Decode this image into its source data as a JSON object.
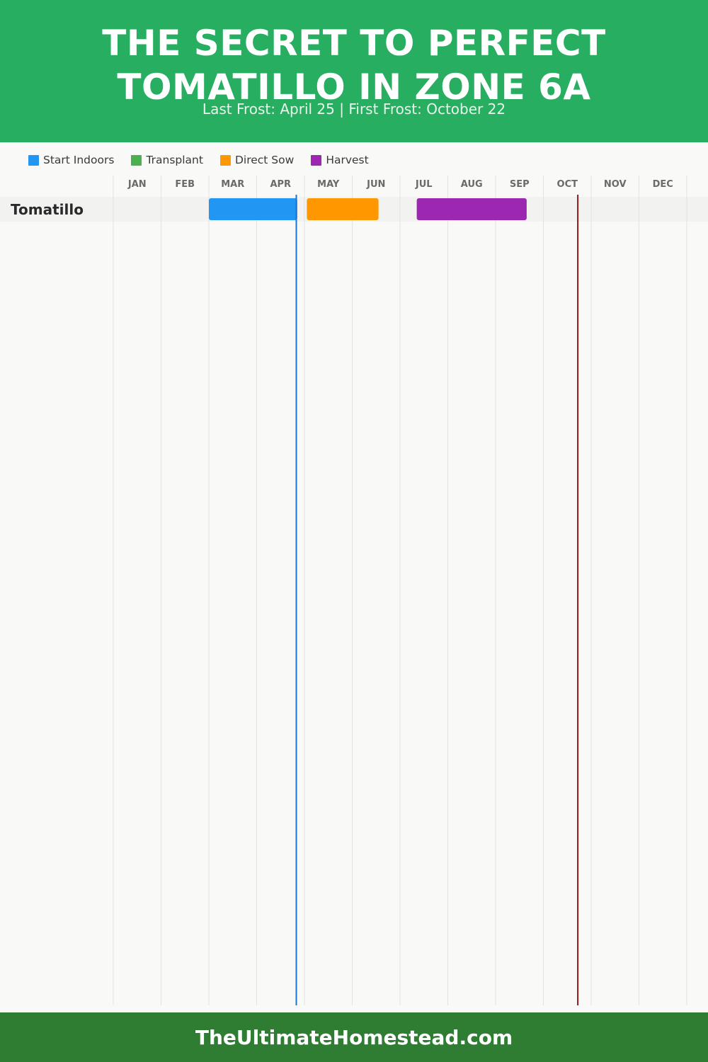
{
  "colors": {
    "header_bg": "#27ae60",
    "footer_bg": "#2e7d32",
    "start_indoors": "#2196f3",
    "transplant": "#4caf50",
    "direct_sow": "#ff9800",
    "harvest": "#9c27b0",
    "last_frost_line": "#1976d2",
    "first_frost_line": "#8b1a1a"
  },
  "header": {
    "title": "THE SECRET TO PERFECT TOMATILLO IN ZONE 6A",
    "subtitle": "Last Frost: April 25 | First Frost: October 22"
  },
  "legend": [
    {
      "label": "Start Indoors",
      "color": "#2196f3"
    },
    {
      "label": "Transplant",
      "color": "#4caf50"
    },
    {
      "label": "Direct Sow",
      "color": "#ff9800"
    },
    {
      "label": "Harvest",
      "color": "#9c27b0"
    }
  ],
  "chart_data": {
    "type": "gantt",
    "months": [
      "JAN",
      "FEB",
      "MAR",
      "APR",
      "MAY",
      "JUN",
      "JUL",
      "AUG",
      "SEP",
      "OCT",
      "NOV",
      "DEC"
    ],
    "rows": [
      {
        "label": "Tomatillo",
        "bars": [
          {
            "phase": "Start Indoors",
            "start_month": 3.0,
            "end_month": 4.85,
            "color": "#2196f3"
          },
          {
            "phase": "Direct Sow",
            "start_month": 5.05,
            "end_month": 6.55,
            "color": "#ff9800"
          },
          {
            "phase": "Harvest",
            "start_month": 7.35,
            "end_month": 9.65,
            "color": "#9c27b0"
          }
        ]
      }
    ],
    "markers": [
      {
        "name": "Last Frost",
        "month": 4.83,
        "color": "#1976d2"
      },
      {
        "name": "First Frost",
        "month": 10.72,
        "color": "#8b1a1a"
      }
    ],
    "grid": true
  },
  "footer": {
    "site": "TheUltimateHomestead.com"
  }
}
